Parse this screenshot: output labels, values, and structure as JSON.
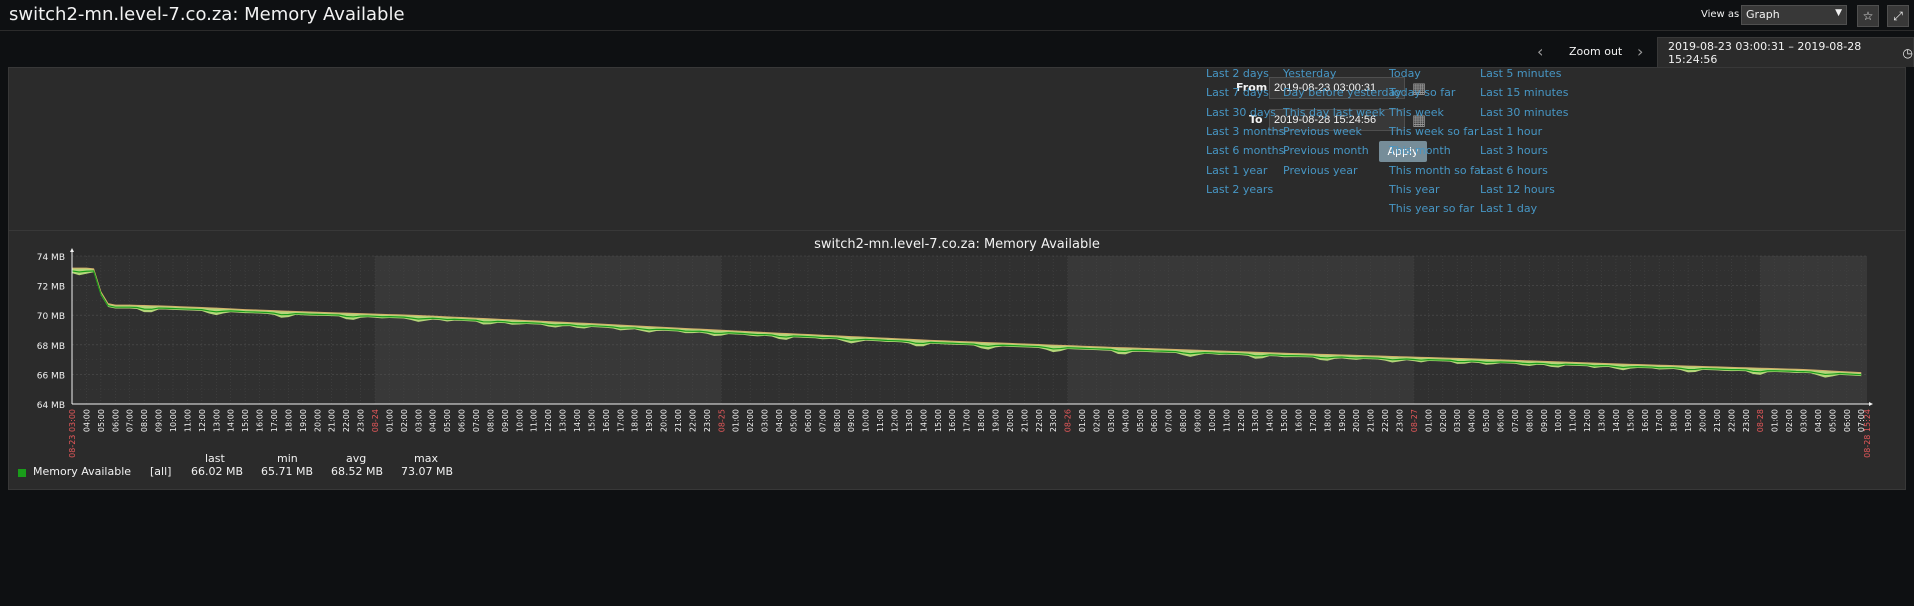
{
  "header": {
    "title": "switch2-mn.level-7.co.za: Memory Available",
    "view_as_label": "View as",
    "view_as_value": "Graph",
    "favourite_icon": "star-icon",
    "fullscreen_icon": "expand-icon"
  },
  "timebar": {
    "zoom_out": "Zoom out",
    "range_text": "2019-08-23 03:00:31 – 2019-08-28 15:24:56"
  },
  "filter": {
    "from_label": "From",
    "from_value": "2019-08-23 03:00:31",
    "to_label": "To",
    "to_value": "2019-08-28 15:24:56",
    "apply_label": "Apply",
    "quick_columns": [
      [
        "Last 2 days",
        "Last 7 days",
        "Last 30 days",
        "Last 3 months",
        "Last 6 months",
        "Last 1 year",
        "Last 2 years"
      ],
      [
        "Yesterday",
        "Day before yesterday",
        "This day last week",
        "Previous week",
        "Previous month",
        "Previous year"
      ],
      [
        "Today",
        "Today so far",
        "This week",
        "This week so far",
        "This month",
        "This month so far",
        "This year",
        "This year so far"
      ],
      [
        "Last 5 minutes",
        "Last 15 minutes",
        "Last 30 minutes",
        "Last 1 hour",
        "Last 3 hours",
        "Last 6 hours",
        "Last 12 hours",
        "Last 1 day"
      ]
    ]
  },
  "chart_data": {
    "type": "line",
    "title": "switch2-mn.level-7.co.za: Memory Available",
    "y_ticks": [
      "64 MB",
      "66 MB",
      "68 MB",
      "70 MB",
      "72 MB",
      "74 MB"
    ],
    "ylim": [
      64,
      74
    ],
    "x_start": "2019-08-23 03:00",
    "x_end": "2019-08-28 15:24",
    "x_day_labels": [
      "08-23 03:00",
      "08-24",
      "08-25",
      "08-26",
      "08-27",
      "08-28",
      "08-28 15:24"
    ],
    "x_hour_labels": [
      "04:00",
      "05:00",
      "06:00",
      "07:00",
      "08:00",
      "09:00",
      "10:00",
      "11:00",
      "12:00",
      "13:00",
      "14:00",
      "15:00",
      "16:00",
      "17:00",
      "18:00",
      "19:00",
      "20:00",
      "21:00",
      "22:00",
      "23:00",
      "01:00",
      "02:00",
      "03:00",
      "04:00",
      "05:00",
      "06:00",
      "07:00",
      "08:00",
      "09:00",
      "10:00",
      "11:00",
      "12:00",
      "13:00",
      "14:00",
      "15:00",
      "16:00",
      "17:00",
      "18:00",
      "19:00",
      "20:00",
      "21:00",
      "22:00",
      "23:00",
      "01:00",
      "02:00",
      "03:00",
      "04:00",
      "05:00",
      "06:00",
      "07:00",
      "08:00",
      "09:00",
      "10:00",
      "11:00",
      "12:00",
      "13:00",
      "14:00",
      "15:00",
      "16:00",
      "17:00",
      "18:00",
      "19:00",
      "20:00",
      "21:00",
      "22:00",
      "23:00",
      "01:00",
      "02:00",
      "03:00",
      "04:00",
      "05:00",
      "06:00",
      "07:00",
      "08:00",
      "09:00",
      "10:00",
      "11:00",
      "12:00",
      "13:00",
      "14:00",
      "15:00",
      "16:00",
      "17:00",
      "18:00",
      "19:00",
      "20:00",
      "21:00",
      "22:00",
      "23:00",
      "01:00",
      "02:00",
      "03:00",
      "04:00",
      "05:00",
      "06:00",
      "07:00",
      "08:00",
      "09:00",
      "10:00",
      "11:00",
      "12:00",
      "13:00",
      "14:00",
      "15:00",
      "16:00",
      "17:00",
      "18:00",
      "19:00",
      "20:00",
      "21:00",
      "22:00",
      "23:00",
      "01:00",
      "02:00",
      "03:00",
      "04:00",
      "05:00",
      "06:00",
      "07:00",
      "08:00",
      "09:00",
      "10:00",
      "11:00",
      "12:00",
      "13:00",
      "14:00"
    ],
    "series": [
      {
        "name": "Memory Available",
        "color": "#1a9c1a",
        "points_hours": [
          0,
          1,
          1.5,
          2,
          2.5,
          3,
          4,
          6,
          10,
          12,
          16,
          24,
          36,
          48,
          60,
          72,
          84,
          96,
          108,
          120,
          124.4
        ],
        "values": [
          73.1,
          73.1,
          73.05,
          71.5,
          70.7,
          70.6,
          70.6,
          70.55,
          70.4,
          70.3,
          70.15,
          69.9,
          69.35,
          68.75,
          68.2,
          67.75,
          67.35,
          67.0,
          66.6,
          66.25,
          66.02
        ]
      }
    ],
    "legend": {
      "name": "Memory Available",
      "func": "[all]",
      "last_label": "last",
      "last": "66.02 MB",
      "min_label": "min",
      "min": "65.71 MB",
      "avg_label": "avg",
      "avg": "68.52 MB",
      "max_label": "max",
      "max": "73.07 MB"
    }
  }
}
